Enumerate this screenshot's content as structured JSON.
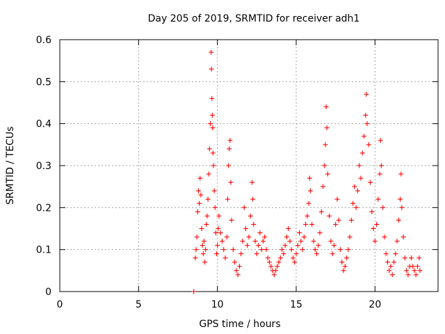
{
  "chart_data": {
    "type": "scatter",
    "title": "Day 205 of 2019, SRMTID for receiver adh1",
    "xlabel": "GPS time / hours",
    "ylabel": "SRMTID / TECUs",
    "xlim": [
      0,
      24
    ],
    "ylim": [
      0,
      0.6
    ],
    "xticks": [
      0,
      5,
      10,
      15,
      20
    ],
    "yticks": [
      0,
      0.1,
      0.2,
      0.3,
      0.4,
      0.5,
      0.6
    ],
    "xtick_labels": [
      "0",
      "5",
      "10",
      "15",
      "20"
    ],
    "ytick_labels": [
      "0",
      "0.1",
      "0.2",
      "0.3",
      "0.4",
      "0.5",
      "0.6"
    ],
    "grid": true,
    "marker": "plus",
    "color": "#ff0000",
    "series": [
      {
        "name": "SRMTID",
        "points": [
          [
            8.5,
            0.0
          ],
          [
            8.6,
            0.08
          ],
          [
            8.65,
            0.1
          ],
          [
            8.7,
            0.13
          ],
          [
            8.75,
            0.19
          ],
          [
            8.8,
            0.24
          ],
          [
            8.85,
            0.21
          ],
          [
            8.9,
            0.27
          ],
          [
            8.95,
            0.23
          ],
          [
            9.0,
            0.15
          ],
          [
            9.05,
            0.11
          ],
          [
            9.1,
            0.09
          ],
          [
            9.15,
            0.12
          ],
          [
            9.2,
            0.07
          ],
          [
            9.25,
            0.1
          ],
          [
            9.3,
            0.16
          ],
          [
            9.35,
            0.18
          ],
          [
            9.4,
            0.22
          ],
          [
            9.45,
            0.28
          ],
          [
            9.5,
            0.34
          ],
          [
            9.55,
            0.4
          ],
          [
            9.6,
            0.57
          ],
          [
            9.62,
            0.53
          ],
          [
            9.65,
            0.46
          ],
          [
            9.68,
            0.42
          ],
          [
            9.7,
            0.39
          ],
          [
            9.72,
            0.33
          ],
          [
            9.75,
            0.3
          ],
          [
            9.8,
            0.24
          ],
          [
            9.85,
            0.2
          ],
          [
            9.9,
            0.14
          ],
          [
            9.95,
            0.09
          ],
          [
            10.0,
            0.11
          ],
          [
            10.05,
            0.15
          ],
          [
            10.1,
            0.18
          ],
          [
            10.2,
            0.14
          ],
          [
            10.3,
            0.12
          ],
          [
            10.4,
            0.1
          ],
          [
            10.5,
            0.08
          ],
          [
            10.6,
            0.13
          ],
          [
            10.65,
            0.22
          ],
          [
            10.7,
            0.3
          ],
          [
            10.75,
            0.34
          ],
          [
            10.8,
            0.36
          ],
          [
            10.85,
            0.26
          ],
          [
            10.9,
            0.17
          ],
          [
            11.0,
            0.1
          ],
          [
            11.1,
            0.07
          ],
          [
            11.2,
            0.05
          ],
          [
            11.3,
            0.04
          ],
          [
            11.4,
            0.06
          ],
          [
            11.5,
            0.09
          ],
          [
            11.6,
            0.12
          ],
          [
            11.7,
            0.2
          ],
          [
            11.8,
            0.15
          ],
          [
            11.9,
            0.11
          ],
          [
            12.0,
            0.13
          ],
          [
            12.1,
            0.18
          ],
          [
            12.2,
            0.26
          ],
          [
            12.25,
            0.22
          ],
          [
            12.3,
            0.16
          ],
          [
            12.4,
            0.12
          ],
          [
            12.5,
            0.09
          ],
          [
            12.6,
            0.11
          ],
          [
            12.7,
            0.14
          ],
          [
            12.8,
            0.1
          ],
          [
            12.9,
            0.12
          ],
          [
            13.0,
            0.13
          ],
          [
            13.1,
            0.1
          ],
          [
            13.2,
            0.08
          ],
          [
            13.3,
            0.07
          ],
          [
            13.4,
            0.06
          ],
          [
            13.5,
            0.05
          ],
          [
            13.6,
            0.04
          ],
          [
            13.7,
            0.05
          ],
          [
            13.8,
            0.06
          ],
          [
            13.9,
            0.07
          ],
          [
            14.0,
            0.08
          ],
          [
            14.1,
            0.1
          ],
          [
            14.2,
            0.09
          ],
          [
            14.3,
            0.11
          ],
          [
            14.4,
            0.13
          ],
          [
            14.5,
            0.15
          ],
          [
            14.6,
            0.12
          ],
          [
            14.7,
            0.1
          ],
          [
            14.8,
            0.08
          ],
          [
            14.9,
            0.07
          ],
          [
            15.0,
            0.09
          ],
          [
            15.1,
            0.11
          ],
          [
            15.2,
            0.14
          ],
          [
            15.3,
            0.12
          ],
          [
            15.4,
            0.1
          ],
          [
            15.5,
            0.13
          ],
          [
            15.6,
            0.16
          ],
          [
            15.7,
            0.18
          ],
          [
            15.8,
            0.21
          ],
          [
            15.85,
            0.27
          ],
          [
            15.9,
            0.24
          ],
          [
            16.0,
            0.16
          ],
          [
            16.1,
            0.12
          ],
          [
            16.2,
            0.1
          ],
          [
            16.3,
            0.09
          ],
          [
            16.4,
            0.11
          ],
          [
            16.5,
            0.14
          ],
          [
            16.6,
            0.19
          ],
          [
            16.7,
            0.25
          ],
          [
            16.8,
            0.3
          ],
          [
            16.85,
            0.35
          ],
          [
            16.9,
            0.44
          ],
          [
            16.95,
            0.39
          ],
          [
            17.0,
            0.28
          ],
          [
            17.1,
            0.18
          ],
          [
            17.2,
            0.12
          ],
          [
            17.3,
            0.09
          ],
          [
            17.4,
            0.11
          ],
          [
            17.5,
            0.16
          ],
          [
            17.6,
            0.22
          ],
          [
            17.7,
            0.17
          ],
          [
            17.8,
            0.1
          ],
          [
            17.9,
            0.07
          ],
          [
            18.0,
            0.05
          ],
          [
            18.1,
            0.06
          ],
          [
            18.2,
            0.08
          ],
          [
            18.3,
            0.1
          ],
          [
            18.4,
            0.13
          ],
          [
            18.5,
            0.17
          ],
          [
            18.6,
            0.21
          ],
          [
            18.7,
            0.25
          ],
          [
            18.8,
            0.2
          ],
          [
            18.9,
            0.24
          ],
          [
            19.0,
            0.3
          ],
          [
            19.1,
            0.27
          ],
          [
            19.2,
            0.33
          ],
          [
            19.3,
            0.37
          ],
          [
            19.4,
            0.42
          ],
          [
            19.45,
            0.47
          ],
          [
            19.5,
            0.4
          ],
          [
            19.6,
            0.35
          ],
          [
            19.7,
            0.26
          ],
          [
            19.8,
            0.19
          ],
          [
            19.9,
            0.15
          ],
          [
            20.0,
            0.12
          ],
          [
            20.1,
            0.16
          ],
          [
            20.2,
            0.22
          ],
          [
            20.3,
            0.28
          ],
          [
            20.35,
            0.36
          ],
          [
            20.4,
            0.3
          ],
          [
            20.5,
            0.2
          ],
          [
            20.6,
            0.13
          ],
          [
            20.7,
            0.09
          ],
          [
            20.8,
            0.07
          ],
          [
            20.9,
            0.05
          ],
          [
            21.0,
            0.06
          ],
          [
            21.1,
            0.04
          ],
          [
            21.2,
            0.07
          ],
          [
            21.3,
            0.09
          ],
          [
            21.4,
            0.12
          ],
          [
            21.5,
            0.17
          ],
          [
            21.6,
            0.22
          ],
          [
            21.65,
            0.28
          ],
          [
            21.7,
            0.2
          ],
          [
            21.8,
            0.13
          ],
          [
            21.9,
            0.08
          ],
          [
            22.0,
            0.05
          ],
          [
            22.1,
            0.04
          ],
          [
            22.2,
            0.06
          ],
          [
            22.3,
            0.08
          ],
          [
            22.4,
            0.06
          ],
          [
            22.5,
            0.05
          ],
          [
            22.6,
            0.04
          ],
          [
            22.7,
            0.06
          ],
          [
            22.8,
            0.08
          ],
          [
            22.85,
            0.05
          ]
        ]
      }
    ]
  }
}
